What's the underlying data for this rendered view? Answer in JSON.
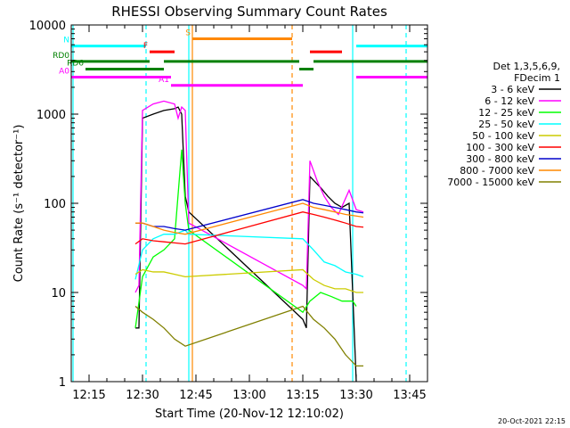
{
  "chart_data": {
    "type": "line",
    "title": "RHESSI Observing Summary Count Rates",
    "xlabel": "Start Time (20-Nov-12 12:10:02)",
    "ylabel": "Count Rate (s⁻¹ detector⁻¹)",
    "xlim": [
      "12:10",
      "13:50"
    ],
    "ylim": [
      1,
      10000
    ],
    "yscale": "log",
    "x_ticks": [
      "12:15",
      "12:30",
      "12:45",
      "13:00",
      "13:15",
      "13:30",
      "13:45"
    ],
    "y_ticks": [
      "1",
      "10",
      "100",
      "1000",
      "10000"
    ],
    "legend": {
      "placement": "right",
      "header_lines": [
        "Det 1,3,5,6,9,",
        "FDecim 1"
      ]
    },
    "footer_text": "20-Oct-2021 22:15",
    "series": [
      {
        "name": "3 - 6 keV",
        "color": "#000000",
        "points": [
          [
            "12:28",
            4
          ],
          [
            "12:29",
            4
          ],
          [
            "12:30",
            900
          ],
          [
            "12:33",
            1000
          ],
          [
            "12:36",
            1100
          ],
          [
            "12:39",
            1150
          ],
          [
            "12:40",
            1200
          ],
          [
            "12:41",
            1000
          ],
          [
            "12:42",
            120
          ],
          [
            "12:43",
            80
          ],
          [
            "13:15",
            5
          ],
          [
            "13:16",
            4
          ],
          [
            "13:17",
            200
          ],
          [
            "13:20",
            150
          ],
          [
            "13:22",
            120
          ],
          [
            "13:24",
            100
          ],
          [
            "13:26",
            90
          ],
          [
            "13:28",
            100
          ],
          [
            "13:30",
            1
          ]
        ]
      },
      {
        "name": "6 - 12 keV",
        "color": "#ff00ff",
        "points": [
          [
            "12:28",
            10
          ],
          [
            "12:29",
            12
          ],
          [
            "12:30",
            1100
          ],
          [
            "12:33",
            1300
          ],
          [
            "12:36",
            1400
          ],
          [
            "12:39",
            1300
          ],
          [
            "12:40",
            900
          ],
          [
            "12:41",
            1200
          ],
          [
            "12:42",
            1100
          ],
          [
            "12:43",
            60
          ],
          [
            "13:15",
            12
          ],
          [
            "13:16",
            11
          ],
          [
            "13:17",
            300
          ],
          [
            "13:19",
            180
          ],
          [
            "13:21",
            120
          ],
          [
            "13:23",
            90
          ],
          [
            "13:25",
            75
          ],
          [
            "13:28",
            140
          ],
          [
            "13:30",
            85
          ],
          [
            "13:32",
            80
          ]
        ]
      },
      {
        "name": "12 - 25 keV",
        "color": "#00ff00",
        "points": [
          [
            "12:28",
            4
          ],
          [
            "12:30",
            15
          ],
          [
            "12:33",
            25
          ],
          [
            "12:36",
            30
          ],
          [
            "12:39",
            40
          ],
          [
            "12:41",
            400
          ],
          [
            "12:42",
            100
          ],
          [
            "12:43",
            50
          ],
          [
            "13:15",
            6
          ],
          [
            "13:17",
            8
          ],
          [
            "13:20",
            10
          ],
          [
            "13:23",
            9
          ],
          [
            "13:26",
            8
          ],
          [
            "13:29",
            8
          ],
          [
            "13:30",
            7
          ]
        ]
      },
      {
        "name": "25 - 50 keV",
        "color": "#00ffff",
        "points": [
          [
            "12:28",
            14
          ],
          [
            "12:30",
            30
          ],
          [
            "12:33",
            40
          ],
          [
            "12:36",
            45
          ],
          [
            "12:39",
            45
          ],
          [
            "12:42",
            50
          ],
          [
            "12:43",
            45
          ],
          [
            "13:15",
            40
          ],
          [
            "13:18",
            30
          ],
          [
            "13:21",
            22
          ],
          [
            "13:24",
            20
          ],
          [
            "13:27",
            17
          ],
          [
            "13:30",
            16
          ],
          [
            "13:32",
            15
          ]
        ]
      },
      {
        "name": "50 - 100 keV",
        "color": "#cccc00",
        "points": [
          [
            "12:28",
            16
          ],
          [
            "12:30",
            18
          ],
          [
            "12:33",
            17
          ],
          [
            "12:36",
            17
          ],
          [
            "12:39",
            16
          ],
          [
            "12:42",
            15
          ],
          [
            "13:15",
            18
          ],
          [
            "13:18",
            14
          ],
          [
            "13:21",
            12
          ],
          [
            "13:24",
            11
          ],
          [
            "13:27",
            11
          ],
          [
            "13:30",
            10
          ],
          [
            "13:32",
            10
          ]
        ]
      },
      {
        "name": "100 - 300 keV",
        "color": "#ff0000",
        "points": [
          [
            "12:28",
            35
          ],
          [
            "12:30",
            40
          ],
          [
            "12:33",
            38
          ],
          [
            "12:36",
            37
          ],
          [
            "12:39",
            36
          ],
          [
            "12:42",
            35
          ],
          [
            "13:15",
            80
          ],
          [
            "13:18",
            75
          ],
          [
            "13:21",
            70
          ],
          [
            "13:24",
            65
          ],
          [
            "13:27",
            60
          ],
          [
            "13:30",
            55
          ],
          [
            "13:32",
            54
          ]
        ]
      },
      {
        "name": "300 - 800 keV",
        "color": "#0000cc",
        "points": [
          [
            "12:28",
            60
          ],
          [
            "12:30",
            60
          ],
          [
            "12:33",
            55
          ],
          [
            "12:36",
            55
          ],
          [
            "12:39",
            52
          ],
          [
            "12:42",
            50
          ],
          [
            "13:15",
            110
          ],
          [
            "13:18",
            100
          ],
          [
            "13:21",
            95
          ],
          [
            "13:24",
            90
          ],
          [
            "13:27",
            85
          ],
          [
            "13:30",
            80
          ],
          [
            "13:32",
            78
          ]
        ]
      },
      {
        "name": "800 - 7000 keV",
        "color": "#ff8800",
        "points": [
          [
            "12:28",
            60
          ],
          [
            "12:30",
            60
          ],
          [
            "12:33",
            55
          ],
          [
            "12:36",
            50
          ],
          [
            "12:39",
            47
          ],
          [
            "12:42",
            45
          ],
          [
            "13:15",
            100
          ],
          [
            "13:18",
            90
          ],
          [
            "13:21",
            85
          ],
          [
            "13:24",
            80
          ],
          [
            "13:27",
            75
          ],
          [
            "13:30",
            72
          ],
          [
            "13:32",
            70
          ]
        ]
      },
      {
        "name": "7000 - 15000 keV",
        "color": "#808000",
        "points": [
          [
            "12:28",
            7
          ],
          [
            "12:30",
            6
          ],
          [
            "12:33",
            5
          ],
          [
            "12:36",
            4
          ],
          [
            "12:39",
            3
          ],
          [
            "12:42",
            2.5
          ],
          [
            "13:15",
            7
          ],
          [
            "13:18",
            5
          ],
          [
            "13:21",
            4
          ],
          [
            "13:24",
            3
          ],
          [
            "13:27",
            2
          ],
          [
            "13:30",
            1.5
          ],
          [
            "13:32",
            1.5
          ]
        ]
      }
    ],
    "state_bars": [
      {
        "label": "N",
        "color": "#00ffff",
        "y": 5800,
        "segments": [
          [
            "12:10",
            "12:31"
          ],
          [
            "13:30",
            "13:50"
          ]
        ]
      },
      {
        "label": "F",
        "color": "#ff0000",
        "y": 5000,
        "segments": [
          [
            "12:32",
            "12:39"
          ],
          [
            "13:17",
            "13:26"
          ]
        ]
      },
      {
        "label": "S",
        "color": "#ff8800",
        "y": 7000,
        "segments": [
          [
            "12:44",
            "13:12"
          ]
        ]
      },
      {
        "label": "RD0",
        "color": "#008000",
        "y": 3900,
        "segments": [
          [
            "12:10",
            "12:32"
          ],
          [
            "12:36",
            "13:14"
          ],
          [
            "13:18",
            "13:50"
          ]
        ]
      },
      {
        "label": "RD6",
        "color": "#008000",
        "y": 3200,
        "segments": [
          [
            "12:14",
            "12:36"
          ],
          [
            "13:14",
            "13:18"
          ]
        ]
      },
      {
        "label": "A0",
        "color": "#ff00ff",
        "y": 2600,
        "segments": [
          [
            "12:10",
            "12:38"
          ],
          [
            "13:30",
            "13:50"
          ]
        ]
      },
      {
        "label": "A1",
        "color": "#ff00ff",
        "y": 2100,
        "segments": [
          [
            "12:38",
            "13:15"
          ]
        ]
      }
    ],
    "vertical_markers": [
      {
        "time": "12:10:30",
        "color": "#00ffff",
        "style": "solid"
      },
      {
        "time": "12:31",
        "color": "#00ffff",
        "style": "dashed"
      },
      {
        "time": "12:43",
        "color": "#00ffff",
        "style": "solid"
      },
      {
        "time": "12:44",
        "color": "#ff8800",
        "style": "solid"
      },
      {
        "time": "13:12",
        "color": "#ff8800",
        "style": "dashed"
      },
      {
        "time": "13:29",
        "color": "#00ffff",
        "style": "solid"
      },
      {
        "time": "13:44",
        "color": "#00ffff",
        "style": "dashed"
      }
    ]
  }
}
